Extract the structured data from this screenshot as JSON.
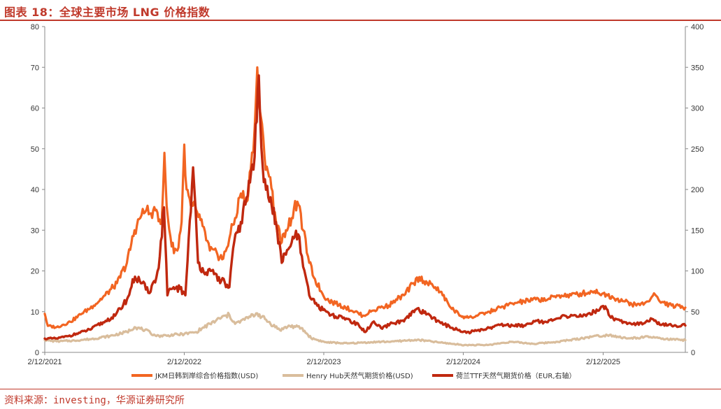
{
  "header": {
    "title": "图表 18：全球主要市场 LNG 价格指数"
  },
  "footer": {
    "source": "资料来源：investing，华源证券研究所"
  },
  "chart_data": {
    "type": "line",
    "x_ticks": [
      "2/12/2021",
      "2/12/2022",
      "2/12/2023",
      "2/12/2024",
      "2/12/2025"
    ],
    "x_range": [
      "2021-02-12",
      "2025-09-15"
    ],
    "y_left": {
      "range": [
        0,
        80
      ],
      "ticks": [
        "0",
        "10",
        "20",
        "30",
        "40",
        "50",
        "60",
        "70",
        "80"
      ]
    },
    "y_right": {
      "range": [
        0,
        400
      ],
      "ticks": [
        "0",
        "50",
        "100",
        "150",
        "200",
        "250",
        "300",
        "350",
        "400"
      ]
    },
    "colors": {
      "jkm": "#f26522",
      "henry": "#d9bd9c",
      "ttf": "#c0280f"
    },
    "series": [
      {
        "name": "JKM日韩到岸综合价格指数(USD)",
        "axis": "left",
        "points": [
          [
            "2021-02-12",
            9.5
          ],
          [
            "2021-02-20",
            6.5
          ],
          [
            "2021-03-15",
            6.2
          ],
          [
            "2021-04-20",
            7.5
          ],
          [
            "2021-05-20",
            9.5
          ],
          [
            "2021-06-20",
            11.5
          ],
          [
            "2021-07-20",
            14
          ],
          [
            "2021-08-20",
            17
          ],
          [
            "2021-09-15",
            22
          ],
          [
            "2021-10-05",
            30
          ],
          [
            "2021-10-20",
            33
          ],
          [
            "2021-11-05",
            35
          ],
          [
            "2021-11-20",
            33
          ],
          [
            "2021-12-01",
            35
          ],
          [
            "2021-12-15",
            32
          ],
          [
            "2021-12-22",
            49
          ],
          [
            "2021-12-28",
            36
          ],
          [
            "2022-01-10",
            26
          ],
          [
            "2022-01-25",
            25
          ],
          [
            "2022-02-05",
            32
          ],
          [
            "2022-02-12",
            51
          ],
          [
            "2022-02-18",
            40
          ],
          [
            "2022-03-01",
            36
          ],
          [
            "2022-03-15",
            35
          ],
          [
            "2022-04-01",
            31
          ],
          [
            "2022-04-20",
            25
          ],
          [
            "2022-05-10",
            24
          ],
          [
            "2022-05-25",
            23
          ],
          [
            "2022-06-10",
            28
          ],
          [
            "2022-06-25",
            33
          ],
          [
            "2022-07-10",
            39
          ],
          [
            "2022-07-25",
            37
          ],
          [
            "2022-08-05",
            45
          ],
          [
            "2022-08-15",
            55
          ],
          [
            "2022-08-22",
            70
          ],
          [
            "2022-08-28",
            60
          ],
          [
            "2022-09-10",
            48
          ],
          [
            "2022-09-25",
            43
          ],
          [
            "2022-10-10",
            32
          ],
          [
            "2022-10-25",
            27
          ],
          [
            "2022-11-05",
            30
          ],
          [
            "2022-11-20",
            33
          ],
          [
            "2022-12-05",
            37
          ],
          [
            "2022-12-20",
            30
          ],
          [
            "2023-01-05",
            22
          ],
          [
            "2023-01-20",
            18
          ],
          [
            "2023-02-05",
            15
          ],
          [
            "2023-02-20",
            13
          ],
          [
            "2023-03-15",
            12
          ],
          [
            "2023-04-10",
            11
          ],
          [
            "2023-05-05",
            10
          ],
          [
            "2023-05-25",
            9
          ],
          [
            "2023-06-15",
            10
          ],
          [
            "2023-07-10",
            11
          ],
          [
            "2023-08-01",
            11.5
          ],
          [
            "2023-08-20",
            13
          ],
          [
            "2023-09-10",
            14
          ],
          [
            "2023-10-05",
            17
          ],
          [
            "2023-10-20",
            18.5
          ],
          [
            "2023-11-10",
            17
          ],
          [
            "2023-12-01",
            16
          ],
          [
            "2023-12-20",
            14
          ],
          [
            "2024-01-10",
            11
          ],
          [
            "2024-02-05",
            9
          ],
          [
            "2024-02-25",
            8.5
          ],
          [
            "2024-03-20",
            9
          ],
          [
            "2024-04-20",
            10
          ],
          [
            "2024-05-20",
            11
          ],
          [
            "2024-06-20",
            12
          ],
          [
            "2024-07-20",
            12.5
          ],
          [
            "2024-08-20",
            13
          ],
          [
            "2024-09-20",
            13
          ],
          [
            "2024-10-20",
            14
          ],
          [
            "2024-11-20",
            14
          ],
          [
            "2024-12-20",
            14.5
          ],
          [
            "2025-01-20",
            15
          ],
          [
            "2025-02-12",
            14.5
          ],
          [
            "2025-03-10",
            13.5
          ],
          [
            "2025-04-10",
            12.5
          ],
          [
            "2025-05-10",
            11.5
          ],
          [
            "2025-06-10",
            12.5
          ],
          [
            "2025-06-25",
            14.5
          ],
          [
            "2025-07-10",
            12.5
          ],
          [
            "2025-08-10",
            11.5
          ],
          [
            "2025-09-15",
            11
          ]
        ]
      },
      {
        "name": "Henry Hub天然气期货价格(USD)",
        "axis": "left",
        "points": [
          [
            "2021-02-12",
            3
          ],
          [
            "2021-03-15",
            2.7
          ],
          [
            "2021-05-01",
            2.9
          ],
          [
            "2021-06-15",
            3.3
          ],
          [
            "2021-08-01",
            4
          ],
          [
            "2021-09-15",
            5
          ],
          [
            "2021-10-05",
            6.2
          ],
          [
            "2021-11-01",
            5.5
          ],
          [
            "2021-12-01",
            4
          ],
          [
            "2022-01-01",
            4.2
          ],
          [
            "2022-02-12",
            4.5
          ],
          [
            "2022-03-15",
            5
          ],
          [
            "2022-04-20",
            7
          ],
          [
            "2022-05-20",
            8.5
          ],
          [
            "2022-06-10",
            9.2
          ],
          [
            "2022-06-25",
            7
          ],
          [
            "2022-07-20",
            8
          ],
          [
            "2022-08-22",
            9.6
          ],
          [
            "2022-09-20",
            7.5
          ],
          [
            "2022-10-20",
            5.5
          ],
          [
            "2022-11-15",
            6.5
          ],
          [
            "2022-12-15",
            6
          ],
          [
            "2023-01-10",
            3.5
          ],
          [
            "2023-02-15",
            2.5
          ],
          [
            "2023-04-15",
            2.2
          ],
          [
            "2023-06-15",
            2.5
          ],
          [
            "2023-08-15",
            2.7
          ],
          [
            "2023-10-15",
            3.1
          ],
          [
            "2023-12-15",
            2.4
          ],
          [
            "2024-02-15",
            1.8
          ],
          [
            "2024-04-15",
            1.8
          ],
          [
            "2024-06-15",
            2.6
          ],
          [
            "2024-08-15",
            2.1
          ],
          [
            "2024-10-15",
            2.6
          ],
          [
            "2024-12-15",
            3.4
          ],
          [
            "2025-01-15",
            3.9
          ],
          [
            "2025-03-01",
            4.3
          ],
          [
            "2025-04-15",
            3.4
          ],
          [
            "2025-06-15",
            3.8
          ],
          [
            "2025-07-15",
            3.3
          ],
          [
            "2025-09-15",
            3
          ]
        ]
      },
      {
        "name": "荷兰TTF天然气期货价格（EUR,右轴）",
        "axis": "right",
        "points": [
          [
            "2021-02-12",
            17
          ],
          [
            "2021-03-15",
            17
          ],
          [
            "2021-04-15",
            20
          ],
          [
            "2021-05-15",
            24
          ],
          [
            "2021-06-15",
            29
          ],
          [
            "2021-07-15",
            37
          ],
          [
            "2021-08-15",
            45
          ],
          [
            "2021-09-15",
            65
          ],
          [
            "2021-10-06",
            93
          ],
          [
            "2021-10-25",
            85
          ],
          [
            "2021-11-10",
            73
          ],
          [
            "2021-12-01",
            92
          ],
          [
            "2021-12-10",
            118
          ],
          [
            "2021-12-21",
            178
          ],
          [
            "2021-12-30",
            70
          ],
          [
            "2022-01-15",
            80
          ],
          [
            "2022-02-01",
            78
          ],
          [
            "2022-02-15",
            70
          ],
          [
            "2022-03-07",
            227
          ],
          [
            "2022-03-20",
            110
          ],
          [
            "2022-04-10",
            98
          ],
          [
            "2022-05-01",
            96
          ],
          [
            "2022-05-20",
            88
          ],
          [
            "2022-06-10",
            80
          ],
          [
            "2022-06-20",
            128
          ],
          [
            "2022-07-10",
            160
          ],
          [
            "2022-07-25",
            190
          ],
          [
            "2022-08-15",
            240
          ],
          [
            "2022-08-26",
            340
          ],
          [
            "2022-09-05",
            230
          ],
          [
            "2022-09-20",
            190
          ],
          [
            "2022-10-10",
            160
          ],
          [
            "2022-10-25",
            110
          ],
          [
            "2022-11-05",
            120
          ],
          [
            "2022-11-20",
            135
          ],
          [
            "2022-12-07",
            145
          ],
          [
            "2022-12-20",
            105
          ],
          [
            "2023-01-05",
            70
          ],
          [
            "2023-01-20",
            60
          ],
          [
            "2023-02-10",
            52
          ],
          [
            "2023-03-15",
            44
          ],
          [
            "2023-04-15",
            41
          ],
          [
            "2023-05-15",
            33
          ],
          [
            "2023-06-01",
            25
          ],
          [
            "2023-06-20",
            37
          ],
          [
            "2023-07-15",
            29
          ],
          [
            "2023-08-10",
            36
          ],
          [
            "2023-09-10",
            38
          ],
          [
            "2023-10-12",
            53
          ],
          [
            "2023-11-10",
            47
          ],
          [
            "2023-12-15",
            36
          ],
          [
            "2024-01-15",
            30
          ],
          [
            "2024-02-20",
            24
          ],
          [
            "2024-03-20",
            27
          ],
          [
            "2024-04-20",
            30
          ],
          [
            "2024-05-20",
            34
          ],
          [
            "2024-06-20",
            33
          ],
          [
            "2024-07-20",
            33
          ],
          [
            "2024-08-20",
            39
          ],
          [
            "2024-09-20",
            37
          ],
          [
            "2024-10-20",
            42
          ],
          [
            "2024-11-20",
            46
          ],
          [
            "2024-12-20",
            44
          ],
          [
            "2025-01-20",
            50
          ],
          [
            "2025-02-12",
            57
          ],
          [
            "2025-03-10",
            42
          ],
          [
            "2025-04-10",
            37
          ],
          [
            "2025-05-10",
            35
          ],
          [
            "2025-06-10",
            38
          ],
          [
            "2025-06-20",
            41
          ],
          [
            "2025-07-10",
            34
          ],
          [
            "2025-08-10",
            33
          ],
          [
            "2025-09-15",
            33
          ]
        ]
      }
    ]
  }
}
